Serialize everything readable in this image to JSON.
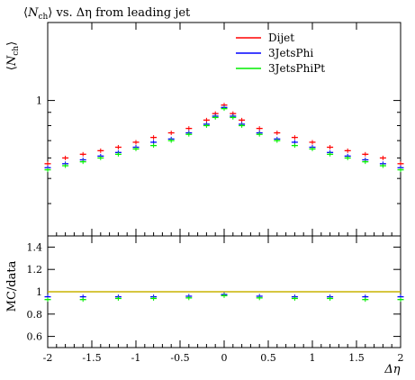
{
  "chart_data": [
    {
      "type": "scatter",
      "title": "⟨N_ch⟩ vs. Δη from leading jet",
      "title_parts": {
        "open": "⟨",
        "var": "N",
        "sub": "ch",
        "close": "⟩",
        "rest": " vs. Δη from leading jet"
      },
      "ylabel_parts": {
        "open": "⟨",
        "var": "N",
        "sub": "ch",
        "close": "⟩"
      },
      "xlim": [
        -2,
        2
      ],
      "ylog": true,
      "ylim": [
        0.3,
        2
      ],
      "yticks": [
        {
          "value": 1,
          "label": "1"
        }
      ],
      "legend_position": "top-right",
      "x": [
        -2.0,
        -1.8,
        -1.6,
        -1.4,
        -1.2,
        -1.0,
        -0.8,
        -0.6,
        -0.4,
        -0.2,
        -0.1,
        0.0,
        0.1,
        0.2,
        0.4,
        0.6,
        0.8,
        1.0,
        1.2,
        1.4,
        1.6,
        1.8,
        2.0
      ],
      "series": [
        {
          "name": "Dijet",
          "color": "#ff0000",
          "values": [
            0.57,
            0.6,
            0.62,
            0.64,
            0.66,
            0.69,
            0.72,
            0.75,
            0.78,
            0.84,
            0.89,
            0.96,
            0.89,
            0.84,
            0.78,
            0.75,
            0.72,
            0.69,
            0.66,
            0.64,
            0.62,
            0.6,
            0.57
          ]
        },
        {
          "name": "3JetsPhi",
          "color": "#0000ff",
          "values": [
            0.55,
            0.57,
            0.59,
            0.61,
            0.63,
            0.66,
            0.69,
            0.71,
            0.75,
            0.81,
            0.87,
            0.94,
            0.87,
            0.81,
            0.75,
            0.71,
            0.69,
            0.66,
            0.63,
            0.61,
            0.59,
            0.57,
            0.55
          ]
        },
        {
          "name": "3JetsPhiPt",
          "color": "#00ee00",
          "values": [
            0.54,
            0.56,
            0.58,
            0.6,
            0.62,
            0.65,
            0.67,
            0.7,
            0.74,
            0.8,
            0.86,
            0.93,
            0.86,
            0.8,
            0.74,
            0.7,
            0.67,
            0.65,
            0.62,
            0.6,
            0.58,
            0.56,
            0.54
          ]
        }
      ]
    },
    {
      "type": "scatter",
      "ylabel": "MC/data",
      "xlabel": "Δη",
      "xlim": [
        -2,
        2
      ],
      "ylim": [
        0.5,
        1.5
      ],
      "reference_line": {
        "value": 1.0,
        "color": "#c8b400"
      },
      "xticks": [
        {
          "value": -2,
          "label": "-2"
        },
        {
          "value": -1.5,
          "label": "-1.5"
        },
        {
          "value": -1,
          "label": "-1"
        },
        {
          "value": -0.5,
          "label": "-0.5"
        },
        {
          "value": 0,
          "label": "0"
        },
        {
          "value": 0.5,
          "label": "0.5"
        },
        {
          "value": 1,
          "label": "1"
        },
        {
          "value": 1.5,
          "label": "1.5"
        },
        {
          "value": 2,
          "label": "2"
        }
      ],
      "yticks": [
        {
          "value": 0.6,
          "label": "0.6"
        },
        {
          "value": 0.8,
          "label": "0.8"
        },
        {
          "value": 1,
          "label": "1"
        },
        {
          "value": 1.2,
          "label": "1.2"
        },
        {
          "value": 1.4,
          "label": "1.4"
        }
      ],
      "x": [
        -2.0,
        -1.6,
        -1.2,
        -0.8,
        -0.4,
        0.0,
        0.4,
        0.8,
        1.2,
        1.6,
        2.0
      ],
      "series": [
        {
          "name": "3JetsPhi",
          "color": "#0000ff",
          "values": [
            0.955,
            0.955,
            0.955,
            0.955,
            0.96,
            0.975,
            0.96,
            0.955,
            0.955,
            0.955,
            0.955
          ]
        },
        {
          "name": "3JetsPhiPt",
          "color": "#00ee00",
          "values": [
            0.93,
            0.93,
            0.94,
            0.94,
            0.945,
            0.965,
            0.945,
            0.94,
            0.94,
            0.93,
            0.93
          ]
        }
      ]
    }
  ]
}
